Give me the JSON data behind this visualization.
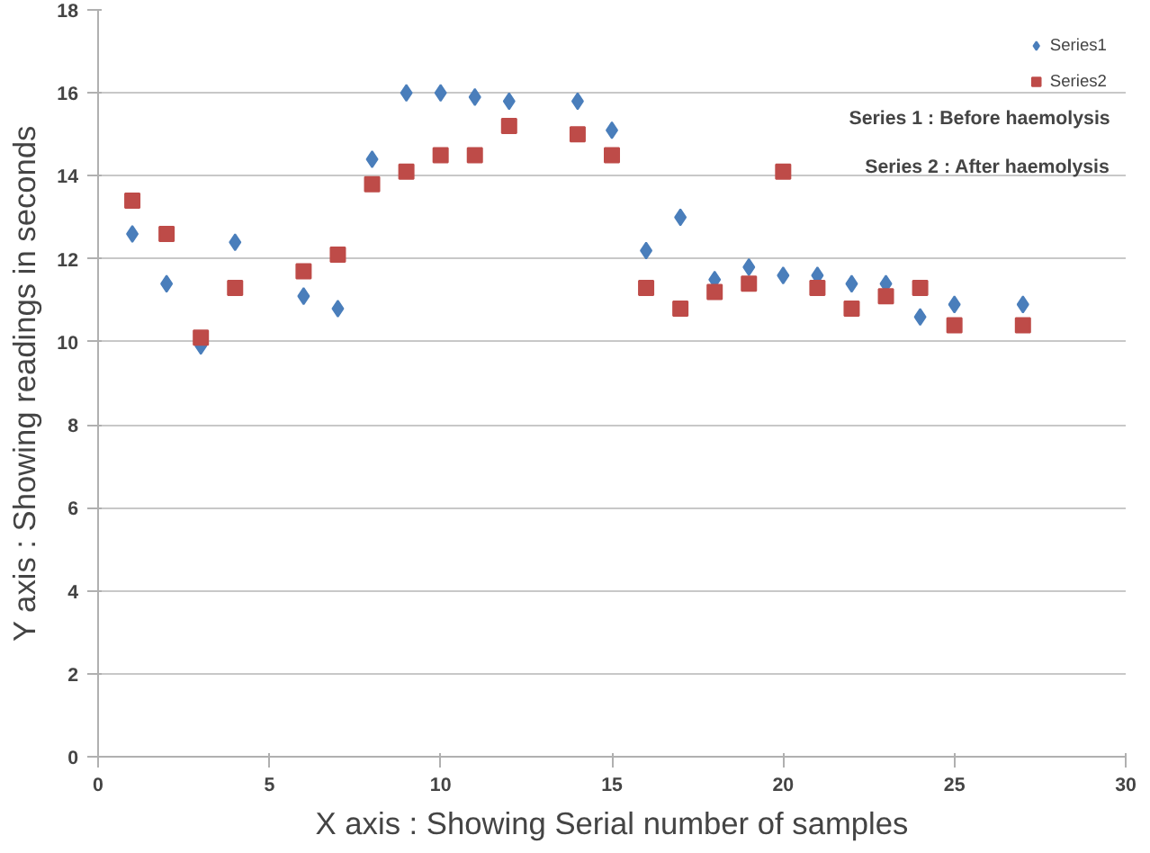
{
  "chart_data": {
    "type": "scatter",
    "xlabel": "X axis : Showing Serial number of samples",
    "ylabel": "Y axis : Showing readings in seconds",
    "x": [
      1,
      2,
      3,
      4,
      6,
      7,
      8,
      9,
      10,
      11,
      12,
      14,
      15,
      16,
      17,
      18,
      19,
      20,
      21,
      22,
      23,
      24,
      25,
      27
    ],
    "series": [
      {
        "name": "Series1",
        "color": "#4a7ebb",
        "marker": "diamond",
        "values": [
          12.6,
          11.4,
          9.9,
          12.4,
          11.1,
          10.8,
          14.4,
          16,
          16,
          15.9,
          15.8,
          15.8,
          15.1,
          12.2,
          13.0,
          11.5,
          11.8,
          11.6,
          11.6,
          11.4,
          11.4,
          10.6,
          10.9,
          10.9
        ]
      },
      {
        "name": "Series2",
        "color": "#be4b48",
        "marker": "square",
        "values": [
          13.4,
          12.6,
          10.1,
          11.3,
          11.7,
          12.1,
          13.8,
          14.1,
          14.5,
          14.5,
          15.2,
          15.0,
          14.5,
          11.3,
          10.8,
          11.2,
          11.4,
          14.1,
          11.3,
          10.8,
          11.1,
          11.3,
          10.4,
          10.4
        ]
      }
    ],
    "annotations": [
      "Series 1 : Before  haemolysis",
      "Series 2 : After  haemolysis"
    ],
    "xlim": [
      0,
      30
    ],
    "xticks": [
      0,
      5,
      10,
      15,
      20,
      25,
      30
    ],
    "ylim": [
      0,
      18
    ],
    "yticks": [
      0,
      2,
      4,
      6,
      8,
      10,
      12,
      14,
      16,
      18
    ],
    "grid": "y",
    "legend": "top right"
  }
}
